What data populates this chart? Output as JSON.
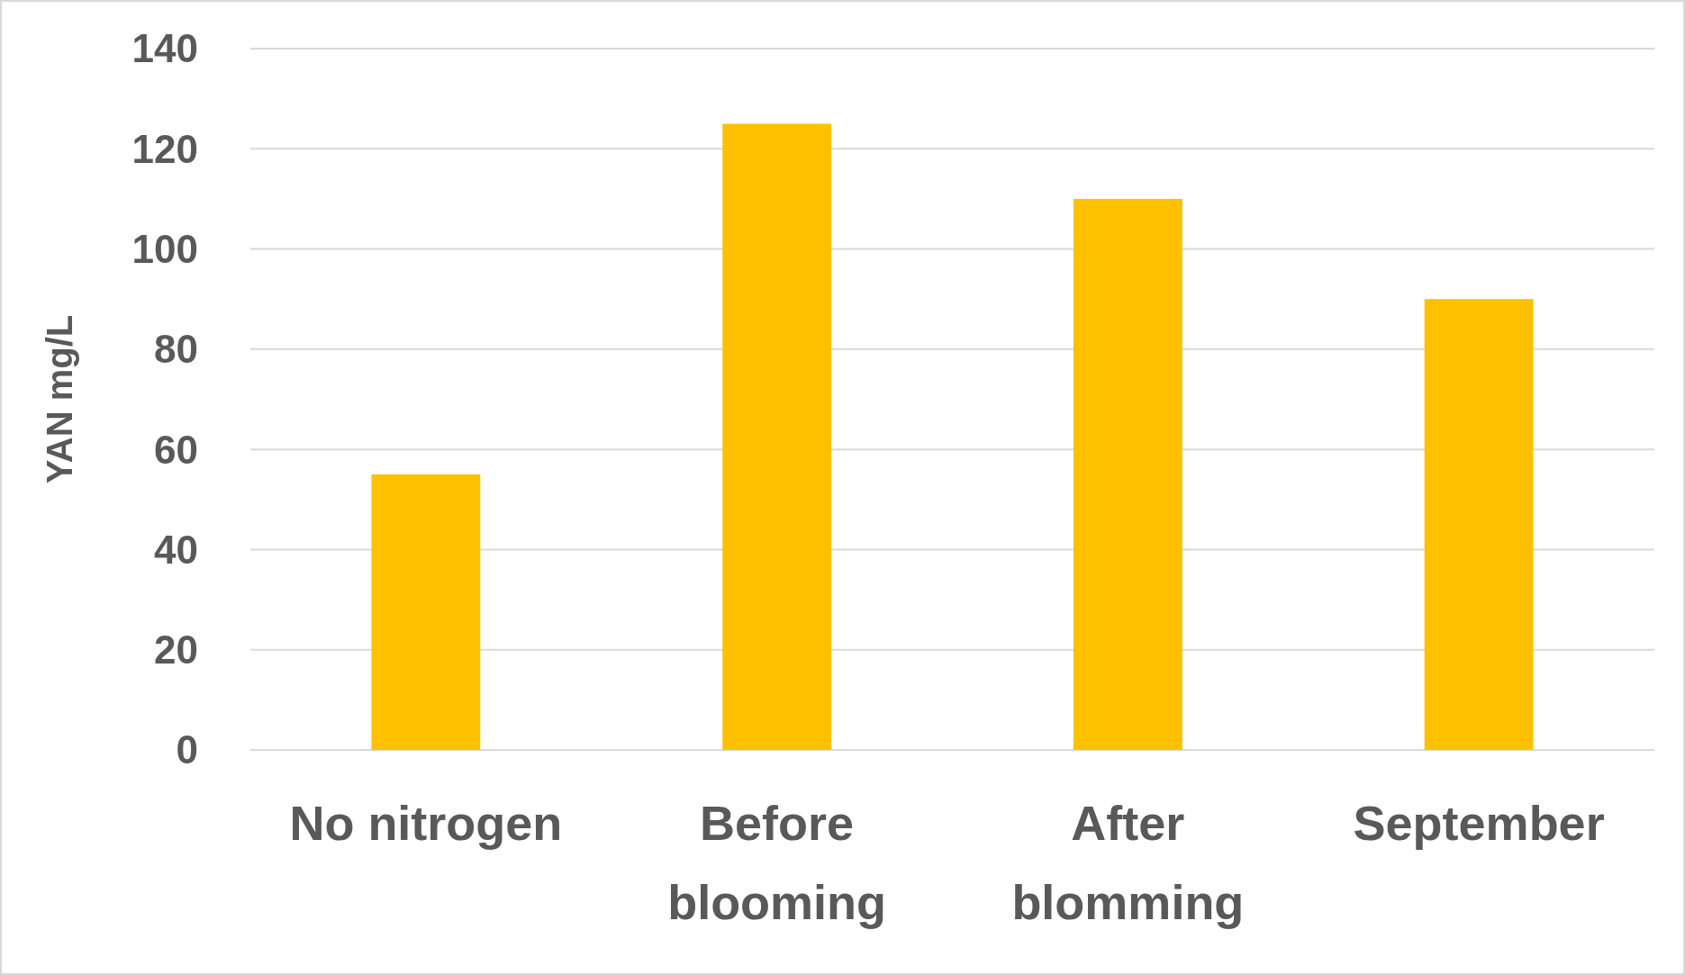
{
  "chart_data": {
    "type": "bar",
    "ylabel": "YAN mg/L",
    "categories": [
      "No nitrogen",
      "Before blooming",
      "After blomming",
      "September"
    ],
    "values": [
      55,
      125,
      110,
      90
    ],
    "color": "#ffc000",
    "ylim": [
      0,
      140
    ],
    "yticks": [
      0,
      20,
      40,
      60,
      80,
      100,
      120,
      140
    ],
    "grid": "y"
  }
}
